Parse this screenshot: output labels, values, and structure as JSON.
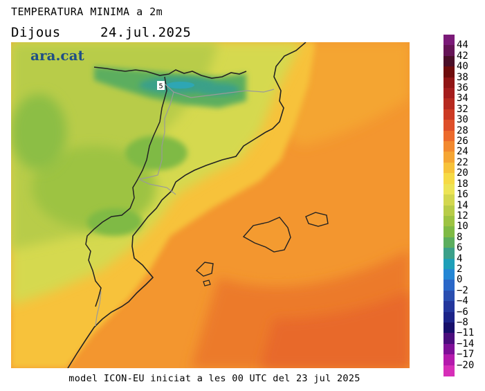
{
  "header": {
    "title": "TEMPERATURA MINIMA a 2m",
    "day": "Dijous",
    "date": "24.jul.2025"
  },
  "map": {
    "brand": "ara.cat",
    "point_label": "5"
  },
  "footer": {
    "text": "model ICON-EU iniciat a les 00 UTC del 23 jul 2025"
  },
  "legend": {
    "labels": [
      "44",
      "42",
      "40",
      "38",
      "36",
      "34",
      "32",
      "30",
      "28",
      "26",
      "24",
      "22",
      "20",
      "18",
      "16",
      "14",
      "12",
      "10",
      "8",
      "6",
      "4",
      "2",
      "0",
      "-2",
      "-4",
      "-6",
      "-8",
      "-11",
      "-14",
      "-17",
      "-20"
    ],
    "colors": [
      "#7b1a78",
      "#651456",
      "#4a0f28",
      "#6e0c0c",
      "#901515",
      "#a41d1d",
      "#b62a20",
      "#cc3a24",
      "#de4f2a",
      "#ec6a2c",
      "#f2892f",
      "#f5a533",
      "#f7c23a",
      "#f6da45",
      "#ede456",
      "#d3d74f",
      "#b8cc48",
      "#9dc342",
      "#7fba45",
      "#5cae5e",
      "#3ba089",
      "#1e9fb8",
      "#2486d4",
      "#2a67c8",
      "#2a4eb0",
      "#23369c",
      "#1c2388",
      "#170f6a",
      "#4a0d7c",
      "#7e0f97",
      "#b41aac",
      "#d62eb8"
    ]
  }
}
